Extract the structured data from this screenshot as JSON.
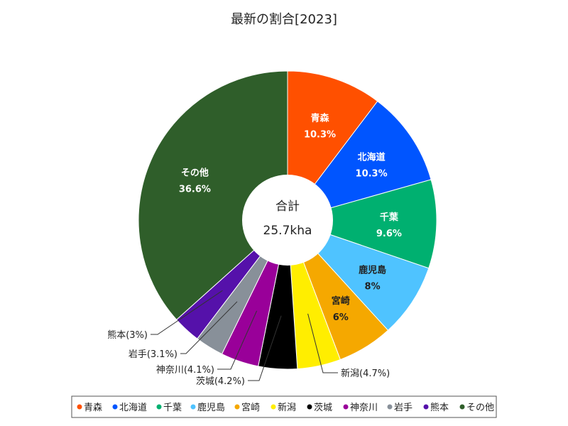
{
  "chart_data": {
    "type": "pie",
    "title": "最新の割合[2023]",
    "center_label": "合計",
    "center_value": "25.7kha",
    "legend_position": "bottom",
    "slices": [
      {
        "name": "青森",
        "percent_label": "10.3%",
        "value": 10.3,
        "color": "#ff5000",
        "label_mode": "inside",
        "label_color": "light"
      },
      {
        "name": "北海道",
        "percent_label": "10.3%",
        "value": 10.3,
        "color": "#0055ff",
        "label_mode": "inside",
        "label_color": "light"
      },
      {
        "name": "千葉",
        "percent_label": "9.6%",
        "value": 9.6,
        "color": "#00b070",
        "label_mode": "inside",
        "label_color": "light"
      },
      {
        "name": "鹿児島",
        "percent_label": "8%",
        "value": 8.0,
        "color": "#4fc3ff",
        "label_mode": "inside",
        "label_color": "dark"
      },
      {
        "name": "宮崎",
        "percent_label": "6%",
        "value": 6.0,
        "color": "#f5a800",
        "label_mode": "inside",
        "label_color": "dark"
      },
      {
        "name": "新潟",
        "percent_label": "4.7%",
        "value": 4.7,
        "color": "#ffee00",
        "label_mode": "callout",
        "label_color": "dark"
      },
      {
        "name": "茨城",
        "percent_label": "4.2%",
        "value": 4.2,
        "color": "#000000",
        "label_mode": "callout",
        "label_color": "dark"
      },
      {
        "name": "神奈川",
        "percent_label": "4.1%",
        "value": 4.1,
        "color": "#990099",
        "label_mode": "callout",
        "label_color": "dark"
      },
      {
        "name": "岩手",
        "percent_label": "3.1%",
        "value": 3.1,
        "color": "#889099",
        "label_mode": "callout",
        "label_color": "dark"
      },
      {
        "name": "熊本",
        "percent_label": "3%",
        "value": 3.0,
        "color": "#5511aa",
        "label_mode": "callout",
        "label_color": "dark"
      },
      {
        "name": "その他",
        "percent_label": "36.6%",
        "value": 36.6,
        "color": "#2f5e2a",
        "label_mode": "inside",
        "label_color": "light"
      }
    ]
  }
}
